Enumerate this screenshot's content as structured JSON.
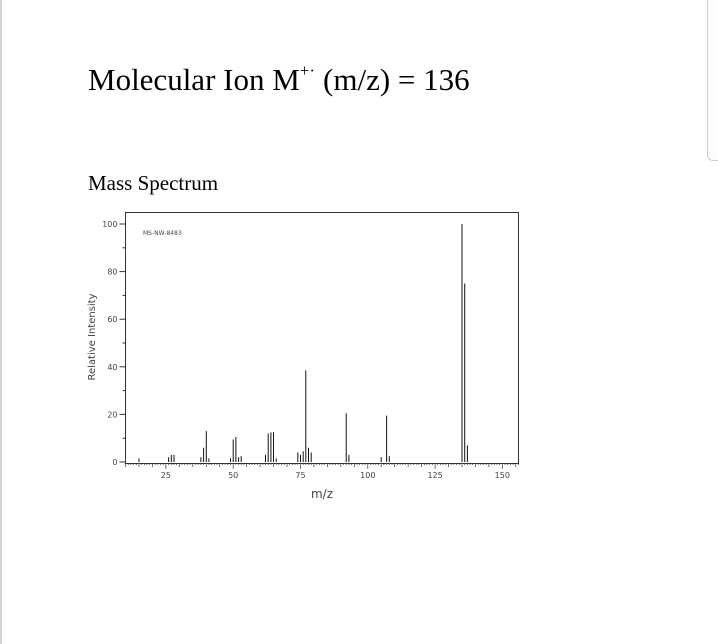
{
  "header": {
    "title_prefix": "Molecular Ion M",
    "title_superscript": "+·",
    "title_suffix": "(m/z) = 136"
  },
  "section": {
    "title": "Mass Spectrum"
  },
  "chart_data": {
    "type": "bar",
    "subtype": "stick-spectrum",
    "title": "",
    "annotation": "MS-NW-8483",
    "xlabel": "m/z",
    "ylabel": "Relative Intensity",
    "xlim": [
      10,
      156
    ],
    "ylim": [
      0,
      100
    ],
    "xticks": [
      25,
      50,
      75,
      100,
      125,
      150
    ],
    "yticks": [
      0,
      20,
      40,
      60,
      80,
      100
    ],
    "x_minor_step": 5,
    "y_minor_step": 10,
    "grid": false,
    "legend": "none",
    "peaks": [
      {
        "mz": 15,
        "intensity": 1.5
      },
      {
        "mz": 26,
        "intensity": 2
      },
      {
        "mz": 27,
        "intensity": 3
      },
      {
        "mz": 28,
        "intensity": 3
      },
      {
        "mz": 38,
        "intensity": 2
      },
      {
        "mz": 39,
        "intensity": 6
      },
      {
        "mz": 40,
        "intensity": 13
      },
      {
        "mz": 41,
        "intensity": 1.5
      },
      {
        "mz": 49,
        "intensity": 1.5
      },
      {
        "mz": 50,
        "intensity": 9.5
      },
      {
        "mz": 51,
        "intensity": 10.5
      },
      {
        "mz": 52,
        "intensity": 2
      },
      {
        "mz": 53,
        "intensity": 2.5
      },
      {
        "mz": 62,
        "intensity": 3
      },
      {
        "mz": 63,
        "intensity": 12
      },
      {
        "mz": 64,
        "intensity": 12.5
      },
      {
        "mz": 65,
        "intensity": 12.5
      },
      {
        "mz": 66,
        "intensity": 1.5
      },
      {
        "mz": 74,
        "intensity": 4
      },
      {
        "mz": 75,
        "intensity": 3
      },
      {
        "mz": 76,
        "intensity": 4.5
      },
      {
        "mz": 77,
        "intensity": 38.5
      },
      {
        "mz": 78,
        "intensity": 6
      },
      {
        "mz": 79,
        "intensity": 4
      },
      {
        "mz": 92,
        "intensity": 20.5
      },
      {
        "mz": 93,
        "intensity": 3
      },
      {
        "mz": 105,
        "intensity": 2
      },
      {
        "mz": 107,
        "intensity": 19.5
      },
      {
        "mz": 108,
        "intensity": 2.5
      },
      {
        "mz": 135,
        "intensity": 100
      },
      {
        "mz": 136,
        "intensity": 75
      },
      {
        "mz": 137,
        "intensity": 7
      }
    ]
  }
}
